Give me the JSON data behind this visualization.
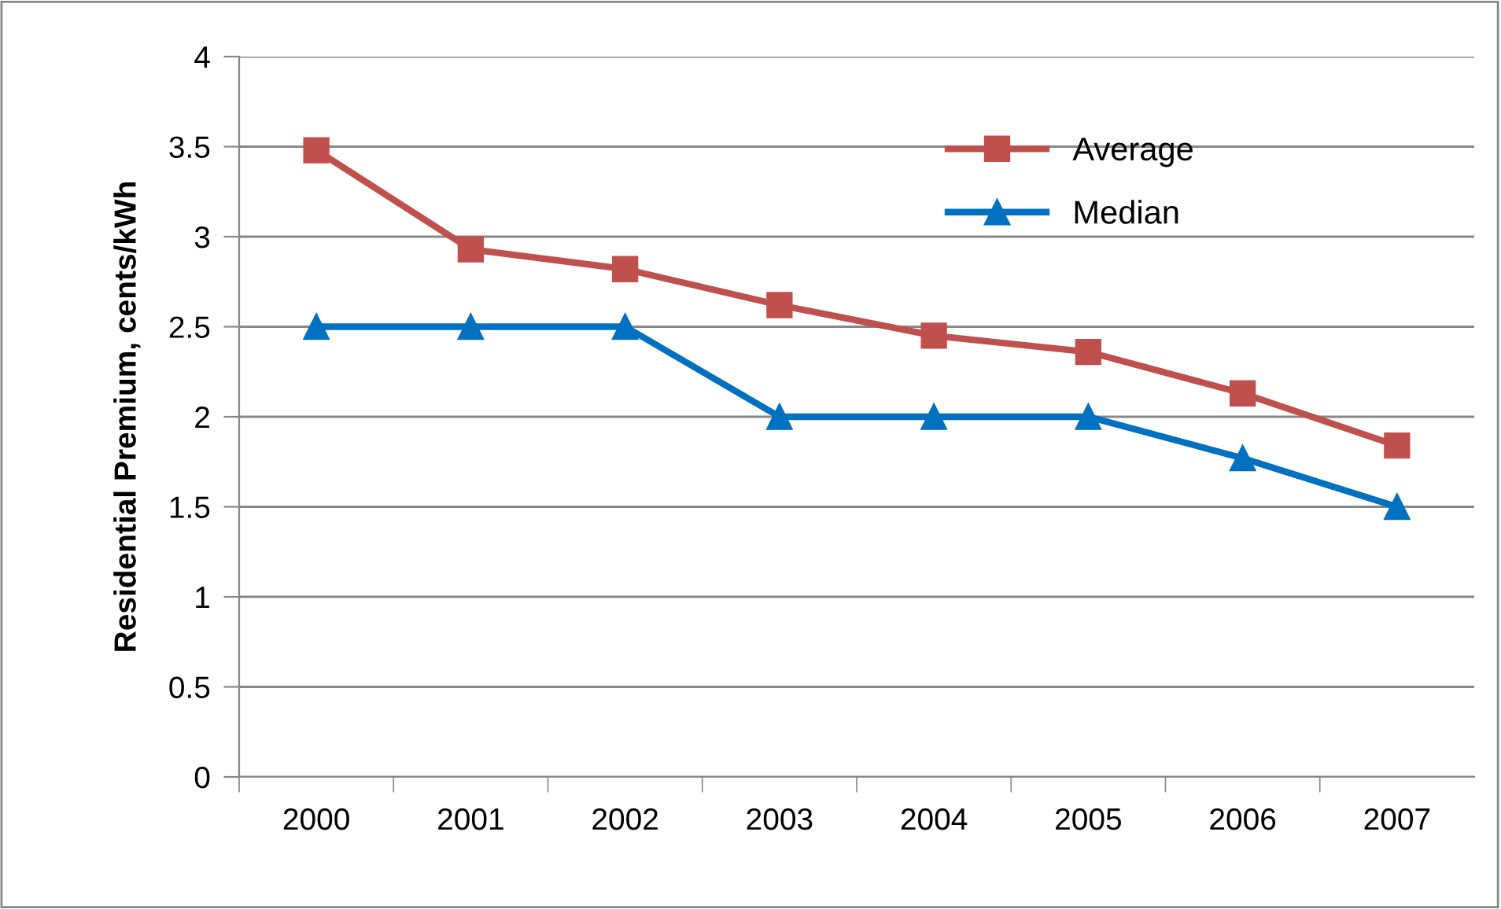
{
  "chart_data": {
    "type": "line",
    "ylabel": "Residential Premium, cents/kWh",
    "categories": [
      "2000",
      "2001",
      "2002",
      "2003",
      "2004",
      "2005",
      "2006",
      "2007"
    ],
    "series": [
      {
        "name": "Average",
        "color": "#c0504d",
        "marker": "square",
        "values": [
          3.48,
          2.93,
          2.82,
          2.62,
          2.45,
          2.36,
          2.13,
          1.84
        ]
      },
      {
        "name": "Median",
        "color": "#0070c0",
        "marker": "triangle",
        "values": [
          2.5,
          2.5,
          2.5,
          2.0,
          2.0,
          2.0,
          1.77,
          1.5
        ]
      }
    ],
    "ylim": [
      0,
      4
    ],
    "yticks": [
      0,
      0.5,
      1,
      1.5,
      2,
      2.5,
      3,
      3.5,
      4
    ],
    "grid": "y",
    "legend": "top right",
    "line_style": "solid"
  }
}
